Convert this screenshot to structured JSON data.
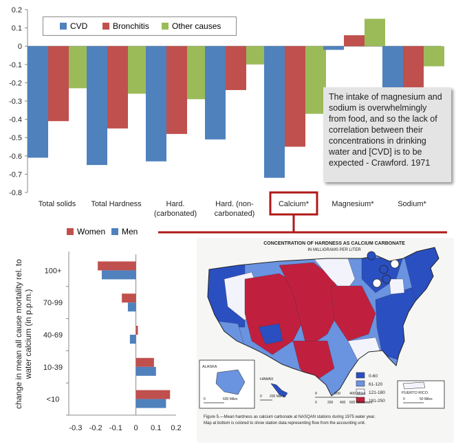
{
  "chart_data": [
    {
      "type": "bar",
      "title": "",
      "xlabel": "",
      "ylabel": "",
      "ylim": [
        -0.8,
        0.2
      ],
      "yticks": [
        "0.2",
        "0.1",
        "0",
        "-0.1",
        "-0.2",
        "-0.3",
        "-0.4",
        "-0.5",
        "-0.6",
        "-0.7",
        "-0.8"
      ],
      "categories": [
        "Total solids",
        "Total Hardness",
        "Hard. (carbonated)",
        "Hard. (non-carbonated)",
        "Calcium*",
        "Magnesium*",
        "Sodium*"
      ],
      "category_lines": [
        [
          "Total solids"
        ],
        [
          "Total Hardness"
        ],
        [
          "Hard.",
          "(carbonated)"
        ],
        [
          "Hard. (non-",
          "carbonated)"
        ],
        [
          "Calcium*"
        ],
        [
          "Magnesium*"
        ],
        [
          "Sodium*"
        ]
      ],
      "series": [
        {
          "name": "CVD",
          "color": "#4f81bd",
          "values": [
            -0.61,
            -0.65,
            -0.63,
            -0.51,
            -0.72,
            -0.02,
            -0.24
          ]
        },
        {
          "name": "Bronchitis",
          "color": "#c0504d",
          "values": [
            -0.41,
            -0.45,
            -0.48,
            -0.24,
            -0.55,
            0.06,
            -0.25
          ]
        },
        {
          "name": "Other causes",
          "color": "#9bbb59",
          "values": [
            -0.23,
            -0.26,
            -0.29,
            -0.1,
            -0.37,
            0.15,
            -0.11
          ]
        }
      ],
      "legend": "top-left"
    },
    {
      "type": "bar",
      "orientation": "horizontal",
      "title": "",
      "xlabel": "",
      "ylabel": "change in mean all cause mortality rel. to water calcium (in p.p.m.)",
      "ylabel_lines": [
        "change in mean all cause mortality rel. to",
        "water calcium (in p.p.m.)"
      ],
      "xlim": [
        -0.3,
        0.2
      ],
      "xticks": [
        "-0.3",
        "-0.2",
        "-0.1",
        "0",
        "0.1",
        "0.2"
      ],
      "categories": [
        "100+",
        "70-99",
        "40-69",
        "10-39",
        "<10"
      ],
      "series": [
        {
          "name": "Women",
          "color": "#c0504d",
          "values": [
            -0.19,
            -0.07,
            0.01,
            0.09,
            0.17
          ]
        },
        {
          "name": "Men",
          "color": "#4f81bd",
          "values": [
            -0.17,
            -0.04,
            -0.03,
            0.1,
            0.15
          ]
        }
      ],
      "legend": "top"
    }
  ],
  "annotation": "The intake of magnesium and sodium is overwhelmingly from food, and so the lack of correlation between their concentrations in drinking water and [CVD] is  to be expected  - Crawford. 1971",
  "map": {
    "title": "CONCENTRATION OF HARDNESS AS CALCIUM CARBONATE",
    "subtitle": "IN MILLIGRAMS PER LITER",
    "legend": [
      {
        "label": "0-60",
        "color": "#2a4fc0"
      },
      {
        "label": "61-120",
        "color": "#6a93e0"
      },
      {
        "label": "121-180",
        "color": "#f3f3fb"
      },
      {
        "label": "181-250",
        "color": "#c0203e"
      }
    ],
    "insets": [
      "ALASKA",
      "HAWAII",
      "PUERTO RICO"
    ],
    "scale_main": [
      "0",
      "200",
      "400 Miles"
    ],
    "scale_main_km": [
      "0",
      "200",
      "400",
      "600 Kilometers"
    ],
    "scale_alaska": [
      "0",
      "600 Miles"
    ],
    "scale_hawaii": [
      "0",
      "200 Miles"
    ],
    "scale_pr": [
      "0",
      "50 Miles"
    ],
    "caption": "Figure 5.—Mean hardness as calcium carbonate at NASQAN stations during 1975 water year.  Map at bottom is colored to show station data representing flow from the accounting unit."
  }
}
